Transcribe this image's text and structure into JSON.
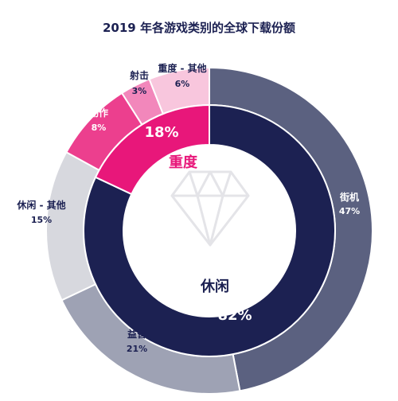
{
  "title": "2019 年各游戏类别的全球下载份额",
  "chart_data": {
    "type": "pie",
    "title": "2019 年各游戏类别的全球下载份额",
    "inner_ring": [
      {
        "label": "休闲",
        "value_label": "82%",
        "value": 82,
        "color": "#1c2152"
      },
      {
        "label": "重度",
        "value_label": "18%",
        "value": 18,
        "color": "#e8177a"
      }
    ],
    "outer_ring": [
      {
        "label": "街机",
        "value_label": "47%",
        "value": 47,
        "color": "#5b6180"
      },
      {
        "label": "益智",
        "value_label": "21%",
        "value": 21,
        "color": "#9ea2b4"
      },
      {
        "label": "休闲 - 其他",
        "value_label": "15%",
        "value": 15,
        "color": "#d7d8de"
      },
      {
        "label": "动作",
        "value_label": "8%",
        "value": 8,
        "color": "#ec3f8e"
      },
      {
        "label": "射击",
        "value_label": "3%",
        "value": 3,
        "color": "#f287bb"
      },
      {
        "label": "重度 - 其他",
        "value_label": "6%",
        "value": 6,
        "color": "#f8c6dd"
      }
    ]
  }
}
